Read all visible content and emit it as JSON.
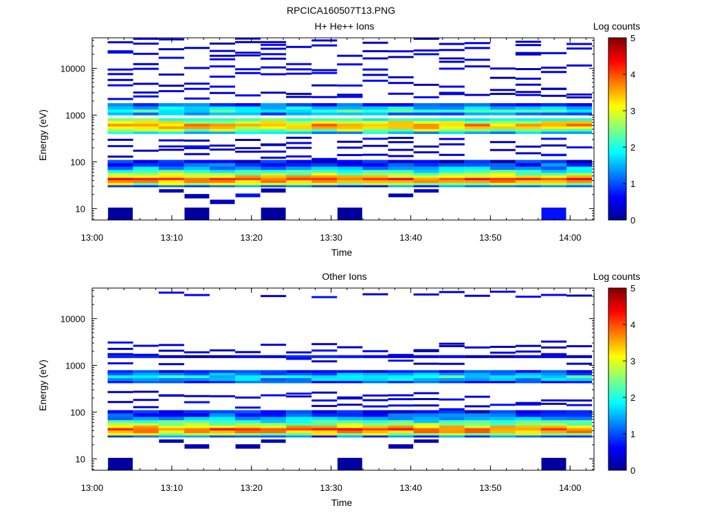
{
  "figure_title": "RPCICA160507T13.PNG",
  "colormap": [
    "#00008f",
    "#0000ff",
    "#0080ff",
    "#00ffff",
    "#80ff80",
    "#ffff00",
    "#ff8000",
    "#ff0000",
    "#800000"
  ],
  "chart_data": [
    {
      "type": "heatmap",
      "title": "H+ He++ Ions",
      "xlabel": "Time",
      "ylabel": "Energy (eV)",
      "x_ticks": [
        "13:00",
        "13:10",
        "13:20",
        "13:30",
        "13:40",
        "13:50",
        "14:00"
      ],
      "x_tick_minutes": [
        0,
        10,
        20,
        30,
        40,
        50,
        60
      ],
      "xlim_minutes": [
        0,
        63
      ],
      "yscale": "log",
      "ylim": [
        5.7,
        45000
      ],
      "y_ticks": [
        10,
        100,
        1000,
        10000
      ],
      "y_tick_labels": [
        "10",
        "100",
        "1000",
        "10000"
      ],
      "colorbar": {
        "label": "Log counts",
        "range": [
          0,
          5
        ],
        "ticks": [
          "0",
          "1",
          "2",
          "3",
          "4",
          "5"
        ]
      },
      "time_bins_minutes": [
        1.95,
        5.15,
        8.35,
        11.55,
        14.75,
        17.95,
        21.15,
        24.35,
        27.55,
        30.75,
        33.95,
        37.15,
        40.35,
        43.55,
        46.75,
        49.95,
        53.15,
        56.35,
        59.55,
        62.75
      ],
      "bands": [
        {
          "energy_low_eV": 29,
          "energy_high_eV": 32,
          "log_counts": 1.1
        },
        {
          "energy_low_eV": 32,
          "energy_high_eV": 36,
          "log_counts": 2.8
        },
        {
          "energy_low_eV": 36,
          "energy_high_eV": 41,
          "log_counts": 3.6
        },
        {
          "energy_low_eV": 41,
          "energy_high_eV": 46,
          "log_counts": 4.0
        },
        {
          "energy_low_eV": 46,
          "energy_high_eV": 52,
          "log_counts": 3.3
        },
        {
          "energy_low_eV": 52,
          "energy_high_eV": 59,
          "log_counts": 2.6
        },
        {
          "energy_low_eV": 59,
          "energy_high_eV": 68,
          "log_counts": 2.0
        },
        {
          "energy_low_eV": 68,
          "energy_high_eV": 80,
          "log_counts": 1.5
        },
        {
          "energy_low_eV": 80,
          "energy_high_eV": 95,
          "log_counts": 1.0
        },
        {
          "energy_low_eV": 95,
          "energy_high_eV": 110,
          "log_counts": 0.6
        },
        {
          "energy_low_eV": 400,
          "energy_high_eV": 450,
          "log_counts": 1.6
        },
        {
          "energy_low_eV": 450,
          "energy_high_eV": 510,
          "log_counts": 2.6
        },
        {
          "energy_low_eV": 510,
          "energy_high_eV": 580,
          "log_counts": 3.2
        },
        {
          "energy_low_eV": 580,
          "energy_high_eV": 660,
          "log_counts": 3.6
        },
        {
          "energy_low_eV": 660,
          "energy_high_eV": 760,
          "log_counts": 3.0
        },
        {
          "energy_low_eV": 760,
          "energy_high_eV": 860,
          "log_counts": 2.2
        },
        {
          "energy_low_eV": 1000,
          "energy_high_eV": 1150,
          "log_counts": 1.3
        },
        {
          "energy_low_eV": 1150,
          "energy_high_eV": 1330,
          "log_counts": 2.0
        },
        {
          "energy_low_eV": 1330,
          "energy_high_eV": 1550,
          "log_counts": 1.6
        },
        {
          "energy_low_eV": 1550,
          "energy_high_eV": 1800,
          "log_counts": 1.0
        }
      ],
      "sparse_energies_eV": [
        130,
        160,
        200,
        240,
        300,
        2500,
        3200,
        4200,
        5500,
        7500,
        10500,
        14000,
        19000,
        25000,
        32000,
        40000
      ],
      "low_energy_blocks": [
        {
          "time_start_minutes": 2.0,
          "time_end_minutes": 5.1,
          "energy_low_eV": 5.7,
          "energy_high_eV": 10.5,
          "log_counts": 0.1
        },
        {
          "time_start_minutes": 11.6,
          "time_end_minutes": 14.7,
          "energy_low_eV": 5.7,
          "energy_high_eV": 10.5,
          "log_counts": 0.1
        },
        {
          "time_start_minutes": 21.2,
          "time_end_minutes": 24.3,
          "energy_low_eV": 5.7,
          "energy_high_eV": 10.5,
          "log_counts": 0.1
        },
        {
          "time_start_minutes": 30.8,
          "time_end_minutes": 33.9,
          "energy_low_eV": 5.7,
          "energy_high_eV": 10.5,
          "log_counts": 0.1
        },
        {
          "time_start_minutes": 56.4,
          "time_end_minutes": 59.5,
          "energy_low_eV": 5.7,
          "energy_high_eV": 10.5,
          "log_counts": 0.7
        },
        {
          "time_start_minutes": 14.8,
          "time_end_minutes": 17.9,
          "energy_low_eV": 12.5,
          "energy_high_eV": 15.5,
          "log_counts": 0.3
        },
        {
          "time_start_minutes": 11.6,
          "time_end_minutes": 14.7,
          "energy_low_eV": 16.5,
          "energy_high_eV": 20.5,
          "log_counts": 0.2
        },
        {
          "time_start_minutes": 18.0,
          "time_end_minutes": 21.1,
          "energy_low_eV": 17.5,
          "energy_high_eV": 21.0,
          "log_counts": 0.7
        },
        {
          "time_start_minutes": 37.2,
          "time_end_minutes": 40.3,
          "energy_low_eV": 17.5,
          "energy_high_eV": 21.0,
          "log_counts": 0.3
        },
        {
          "time_start_minutes": 8.4,
          "time_end_minutes": 11.5,
          "energy_low_eV": 22.0,
          "energy_high_eV": 26.0,
          "log_counts": 0.3
        },
        {
          "time_start_minutes": 21.2,
          "time_end_minutes": 24.3,
          "energy_low_eV": 22.0,
          "energy_high_eV": 27.0,
          "log_counts": 0.2
        },
        {
          "time_start_minutes": 40.4,
          "time_end_minutes": 43.5,
          "energy_low_eV": 22.0,
          "energy_high_eV": 26.0,
          "log_counts": 0.4
        }
      ]
    },
    {
      "type": "heatmap",
      "title": "Other Ions",
      "xlabel": "Time",
      "ylabel": "Energy (eV)",
      "x_ticks": [
        "13:00",
        "13:10",
        "13:20",
        "13:30",
        "13:40",
        "13:50",
        "14:00"
      ],
      "x_tick_minutes": [
        0,
        10,
        20,
        30,
        40,
        50,
        60
      ],
      "xlim_minutes": [
        0,
        63
      ],
      "yscale": "log",
      "ylim": [
        5.7,
        45000
      ],
      "y_ticks": [
        10,
        100,
        1000,
        10000
      ],
      "y_tick_labels": [
        "10",
        "100",
        "1000",
        "10000"
      ],
      "colorbar": {
        "label": "Log counts",
        "range": [
          0,
          5
        ],
        "ticks": [
          "0",
          "1",
          "2",
          "3",
          "4",
          "5"
        ]
      },
      "time_bins_minutes": [
        1.95,
        5.15,
        8.35,
        11.55,
        14.75,
        17.95,
        21.15,
        24.35,
        27.55,
        30.75,
        33.95,
        37.15,
        40.35,
        43.55,
        46.75,
        49.95,
        53.15,
        56.35,
        59.55,
        62.75
      ],
      "bands": [
        {
          "energy_low_eV": 29,
          "energy_high_eV": 32,
          "log_counts": 1.1
        },
        {
          "energy_low_eV": 32,
          "energy_high_eV": 36,
          "log_counts": 2.8
        },
        {
          "energy_low_eV": 36,
          "energy_high_eV": 41,
          "log_counts": 3.6
        },
        {
          "energy_low_eV": 41,
          "energy_high_eV": 46,
          "log_counts": 4.0
        },
        {
          "energy_low_eV": 46,
          "energy_high_eV": 52,
          "log_counts": 3.3
        },
        {
          "energy_low_eV": 52,
          "energy_high_eV": 59,
          "log_counts": 2.6
        },
        {
          "energy_low_eV": 59,
          "energy_high_eV": 68,
          "log_counts": 2.0
        },
        {
          "energy_low_eV": 68,
          "energy_high_eV": 80,
          "log_counts": 1.5
        },
        {
          "energy_low_eV": 80,
          "energy_high_eV": 95,
          "log_counts": 1.0
        },
        {
          "energy_low_eV": 95,
          "energy_high_eV": 110,
          "log_counts": 0.6
        },
        {
          "energy_low_eV": 420,
          "energy_high_eV": 470,
          "log_counts": 0.8
        },
        {
          "energy_low_eV": 470,
          "energy_high_eV": 540,
          "log_counts": 1.5
        },
        {
          "energy_low_eV": 540,
          "energy_high_eV": 620,
          "log_counts": 1.9
        },
        {
          "energy_low_eV": 620,
          "energy_high_eV": 700,
          "log_counts": 1.3
        },
        {
          "energy_low_eV": 700,
          "energy_high_eV": 790,
          "log_counts": 0.8
        },
        {
          "energy_low_eV": 1450,
          "energy_high_eV": 1650,
          "log_counts": 0.5
        }
      ],
      "sparse_energies_eV": [
        130,
        160,
        200,
        240,
        1200,
        1900,
        2300,
        2800,
        33000
      ],
      "low_energy_blocks": [
        {
          "time_start_minutes": 2.0,
          "time_end_minutes": 5.1,
          "energy_low_eV": 5.7,
          "energy_high_eV": 10.5,
          "log_counts": 0.1
        },
        {
          "time_start_minutes": 30.8,
          "time_end_minutes": 33.9,
          "energy_low_eV": 5.7,
          "energy_high_eV": 10.5,
          "log_counts": 0.1
        },
        {
          "time_start_minutes": 56.4,
          "time_end_minutes": 59.5,
          "energy_low_eV": 5.7,
          "energy_high_eV": 10.5,
          "log_counts": 0.1
        },
        {
          "time_start_minutes": 11.6,
          "time_end_minutes": 14.7,
          "energy_low_eV": 16.5,
          "energy_high_eV": 20.5,
          "log_counts": 0.2
        },
        {
          "time_start_minutes": 18.0,
          "time_end_minutes": 21.1,
          "energy_low_eV": 16.5,
          "energy_high_eV": 20.5,
          "log_counts": 0.2
        },
        {
          "time_start_minutes": 37.2,
          "time_end_minutes": 40.3,
          "energy_low_eV": 16.5,
          "energy_high_eV": 20.5,
          "log_counts": 0.2
        },
        {
          "time_start_minutes": 8.4,
          "time_end_minutes": 11.5,
          "energy_low_eV": 22.0,
          "energy_high_eV": 26.0,
          "log_counts": 0.3
        },
        {
          "time_start_minutes": 21.2,
          "time_end_minutes": 24.3,
          "energy_low_eV": 22.0,
          "energy_high_eV": 26.0,
          "log_counts": 0.3
        },
        {
          "time_start_minutes": 40.4,
          "time_end_minutes": 43.5,
          "energy_low_eV": 22.0,
          "energy_high_eV": 26.0,
          "log_counts": 0.3
        }
      ]
    }
  ]
}
